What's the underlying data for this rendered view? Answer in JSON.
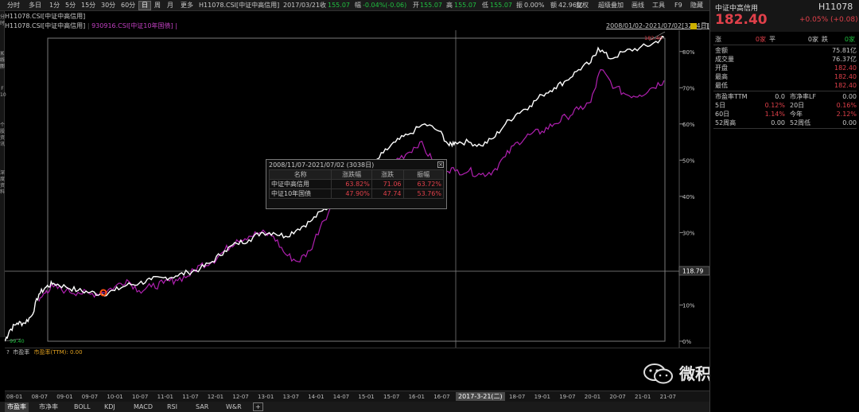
{
  "toolbar": {
    "periods": [
      "分时",
      "多日",
      "1分",
      "5分",
      "15分",
      "30分",
      "60分",
      "日",
      "周",
      "月",
      "更多"
    ],
    "active_period": "日",
    "quote": {
      "code": "H11078.CSI[中证中高信用]",
      "date": "2017/03/21",
      "close_label": "收",
      "close": "155.07",
      "change_label": "幅",
      "change": "-0.04%(-0.06)",
      "open_label": "开",
      "open": "155.07",
      "high_label": "高",
      "high": "155.07",
      "low_label": "低",
      "low": "155.07",
      "amp_label": "振",
      "amp": "0.00%",
      "amount_label": "额",
      "amount": "42.96亿"
    },
    "tools": [
      "复权",
      "超级叠加",
      "画线",
      "工具",
      "F9",
      "隐藏"
    ]
  },
  "legend": {
    "row2": "H11078.CSI[中证中高信用]",
    "series1": "H11078.CSI[中证中高信用]",
    "series2": "930916.CSI[中证10年国债]",
    "range": "2008/01/02-2021/07/02[3284日]"
  },
  "left_strip": [
    "分",
    "时",
    "K",
    "线",
    "图",
    "F",
    "10",
    "个",
    "股",
    "资",
    "讯",
    "深",
    "度",
    "资",
    "料"
  ],
  "chart_data": {
    "type": "line",
    "x_ticks": [
      "08-01",
      "08-07",
      "09-01",
      "09-07",
      "10-01",
      "10-07",
      "11-01",
      "11-07",
      "12-01",
      "12-07",
      "13-01",
      "13-07",
      "14-01",
      "14-07",
      "15-01",
      "15-07",
      "16-01",
      "16-07",
      "17-01",
      "18-01",
      "18-07",
      "19-01",
      "19-07",
      "20-01",
      "20-07",
      "21-01",
      "21-07"
    ],
    "y_ticks": [
      "0%",
      "10%",
      "20%",
      "30%",
      "40%",
      "50%",
      "60%",
      "70%",
      "80%"
    ],
    "ylim": [
      0,
      85
    ],
    "series": [
      {
        "name": "中证中高信用",
        "color": "#ffffff",
        "points": [
          [
            2008.0,
            0
          ],
          [
            2008.1,
            3
          ],
          [
            2008.25,
            5
          ],
          [
            2008.4,
            5
          ],
          [
            2008.55,
            7
          ],
          [
            2008.7,
            13
          ],
          [
            2008.85,
            15
          ],
          [
            2009.0,
            16
          ],
          [
            2009.25,
            15
          ],
          [
            2009.5,
            14
          ],
          [
            2009.75,
            13.5
          ],
          [
            2010.0,
            13
          ],
          [
            2010.25,
            14
          ],
          [
            2010.5,
            15.5
          ],
          [
            2010.75,
            16
          ],
          [
            2011.0,
            17
          ],
          [
            2011.25,
            17.5
          ],
          [
            2011.5,
            18
          ],
          [
            2011.75,
            19
          ],
          [
            2012.0,
            20
          ],
          [
            2012.25,
            22
          ],
          [
            2012.5,
            25
          ],
          [
            2012.75,
            27
          ],
          [
            2013.0,
            28
          ],
          [
            2013.25,
            30
          ],
          [
            2013.5,
            30
          ],
          [
            2013.75,
            29
          ],
          [
            2014.0,
            31
          ],
          [
            2014.25,
            33
          ],
          [
            2014.5,
            36
          ],
          [
            2014.75,
            38
          ],
          [
            2015.0,
            41
          ],
          [
            2015.25,
            45
          ],
          [
            2015.5,
            48
          ],
          [
            2015.75,
            52
          ],
          [
            2016.0,
            55
          ],
          [
            2016.25,
            57
          ],
          [
            2016.6,
            60
          ],
          [
            2016.9,
            58
          ],
          [
            2017.1,
            54
          ],
          [
            2017.22,
            55
          ],
          [
            2017.5,
            55
          ],
          [
            2017.75,
            54
          ],
          [
            2018.0,
            56
          ],
          [
            2018.25,
            60
          ],
          [
            2018.5,
            63
          ],
          [
            2018.75,
            65
          ],
          [
            2019.0,
            68
          ],
          [
            2019.25,
            70
          ],
          [
            2019.5,
            72
          ],
          [
            2019.75,
            75
          ],
          [
            2020.0,
            77
          ],
          [
            2020.15,
            81
          ],
          [
            2020.4,
            78
          ],
          [
            2020.7,
            80
          ],
          [
            2021.0,
            81
          ],
          [
            2021.25,
            82
          ],
          [
            2021.5,
            84
          ]
        ]
      },
      {
        "name": "中证10年国债",
        "color": "#b020b0",
        "points": [
          [
            2008.7,
            11
          ],
          [
            2008.85,
            14
          ],
          [
            2009.0,
            15
          ],
          [
            2009.25,
            14
          ],
          [
            2009.5,
            13.5
          ],
          [
            2009.75,
            13
          ],
          [
            2010.0,
            13.5
          ],
          [
            2010.25,
            15
          ],
          [
            2010.5,
            17
          ],
          [
            2010.75,
            14
          ],
          [
            2011.0,
            15
          ],
          [
            2011.25,
            16
          ],
          [
            2011.5,
            17
          ],
          [
            2011.75,
            18
          ],
          [
            2012.0,
            21
          ],
          [
            2012.25,
            22
          ],
          [
            2012.5,
            25
          ],
          [
            2012.75,
            28
          ],
          [
            2013.0,
            29
          ],
          [
            2013.25,
            30
          ],
          [
            2013.5,
            29
          ],
          [
            2013.75,
            24
          ],
          [
            2014.0,
            22
          ],
          [
            2014.25,
            25
          ],
          [
            2014.5,
            33
          ],
          [
            2014.75,
            38
          ],
          [
            2015.0,
            42
          ],
          [
            2015.25,
            44
          ],
          [
            2015.5,
            45
          ],
          [
            2015.75,
            48
          ],
          [
            2016.0,
            50
          ],
          [
            2016.25,
            52
          ],
          [
            2016.5,
            55
          ],
          [
            2016.75,
            50
          ],
          [
            2017.0,
            48
          ],
          [
            2017.22,
            47
          ],
          [
            2017.5,
            47
          ],
          [
            2017.75,
            46
          ],
          [
            2018.0,
            47
          ],
          [
            2018.25,
            51
          ],
          [
            2018.5,
            55
          ],
          [
            2018.75,
            57
          ],
          [
            2019.0,
            58
          ],
          [
            2019.25,
            60
          ],
          [
            2019.5,
            62
          ],
          [
            2019.75,
            64
          ],
          [
            2020.0,
            66
          ],
          [
            2020.2,
            75
          ],
          [
            2020.5,
            70
          ],
          [
            2020.75,
            68
          ],
          [
            2021.0,
            68
          ],
          [
            2021.25,
            70
          ],
          [
            2021.5,
            72
          ]
        ]
      }
    ],
    "crosshair_value": "118.79",
    "max_label": "182.40",
    "min_label": "99.40"
  },
  "popup": {
    "title": "2008/11/07-2021/07/02 (3038日)",
    "columns": [
      "名称",
      "涨跌幅",
      "涨跌",
      "振幅"
    ],
    "rows": [
      [
        "中证中高信用",
        "63.82%",
        "71.06",
        "63.72%"
      ],
      [
        "中证10年国债",
        "47.90%",
        "47.74",
        "53.76%"
      ]
    ]
  },
  "indicator": {
    "label": "市盈率",
    "value_label": "市盈率(TTM): 0.00",
    "marker": "?"
  },
  "x_cursor": "2017-3-21(二)",
  "tabs": [
    "市盈率",
    "市净率",
    "BOLL",
    "KDJ",
    "MACD",
    "RSI",
    "SAR",
    "W&R",
    "+"
  ],
  "right_panel": {
    "name": "中证中高信用",
    "code": "H11078",
    "price": "182.40",
    "change": "+0.05% (+0.08)",
    "up_label": "涨",
    "up": "0家",
    "flat_label": "平",
    "flat": "0家",
    "down_label": "跌",
    "down": "0家",
    "rows": [
      {
        "label": "金额",
        "value": "75.81亿",
        "red": false
      },
      {
        "label": "成交量",
        "value": "76.37亿",
        "red": false
      },
      {
        "label": "开盘",
        "value": "182.40",
        "red": true
      },
      {
        "label": "最高",
        "value": "182.40",
        "red": true
      },
      {
        "label": "最低",
        "value": "182.40",
        "red": true
      }
    ],
    "grid": [
      {
        "l1": "市盈率TTM",
        "v1": "0.0",
        "l2": "市净率LF",
        "v2": "0.00",
        "r1": false,
        "r2": false
      },
      {
        "l1": "5日",
        "v1": "0.12%",
        "l2": "20日",
        "v2": "0.16%",
        "r1": true,
        "r2": true
      },
      {
        "l1": "60日",
        "v1": "1.14%",
        "l2": "今年",
        "v2": "2.12%",
        "r1": true,
        "r2": true
      },
      {
        "l1": "52周高",
        "v1": "0.00",
        "l2": "52周低",
        "v2": "0.00",
        "r1": false,
        "r2": false
      }
    ]
  },
  "watermark": "微积分量化价投",
  "colors": {
    "red": "#e0404a",
    "green": "#20c040",
    "purple": "#b020b0",
    "white": "#ffffff"
  }
}
